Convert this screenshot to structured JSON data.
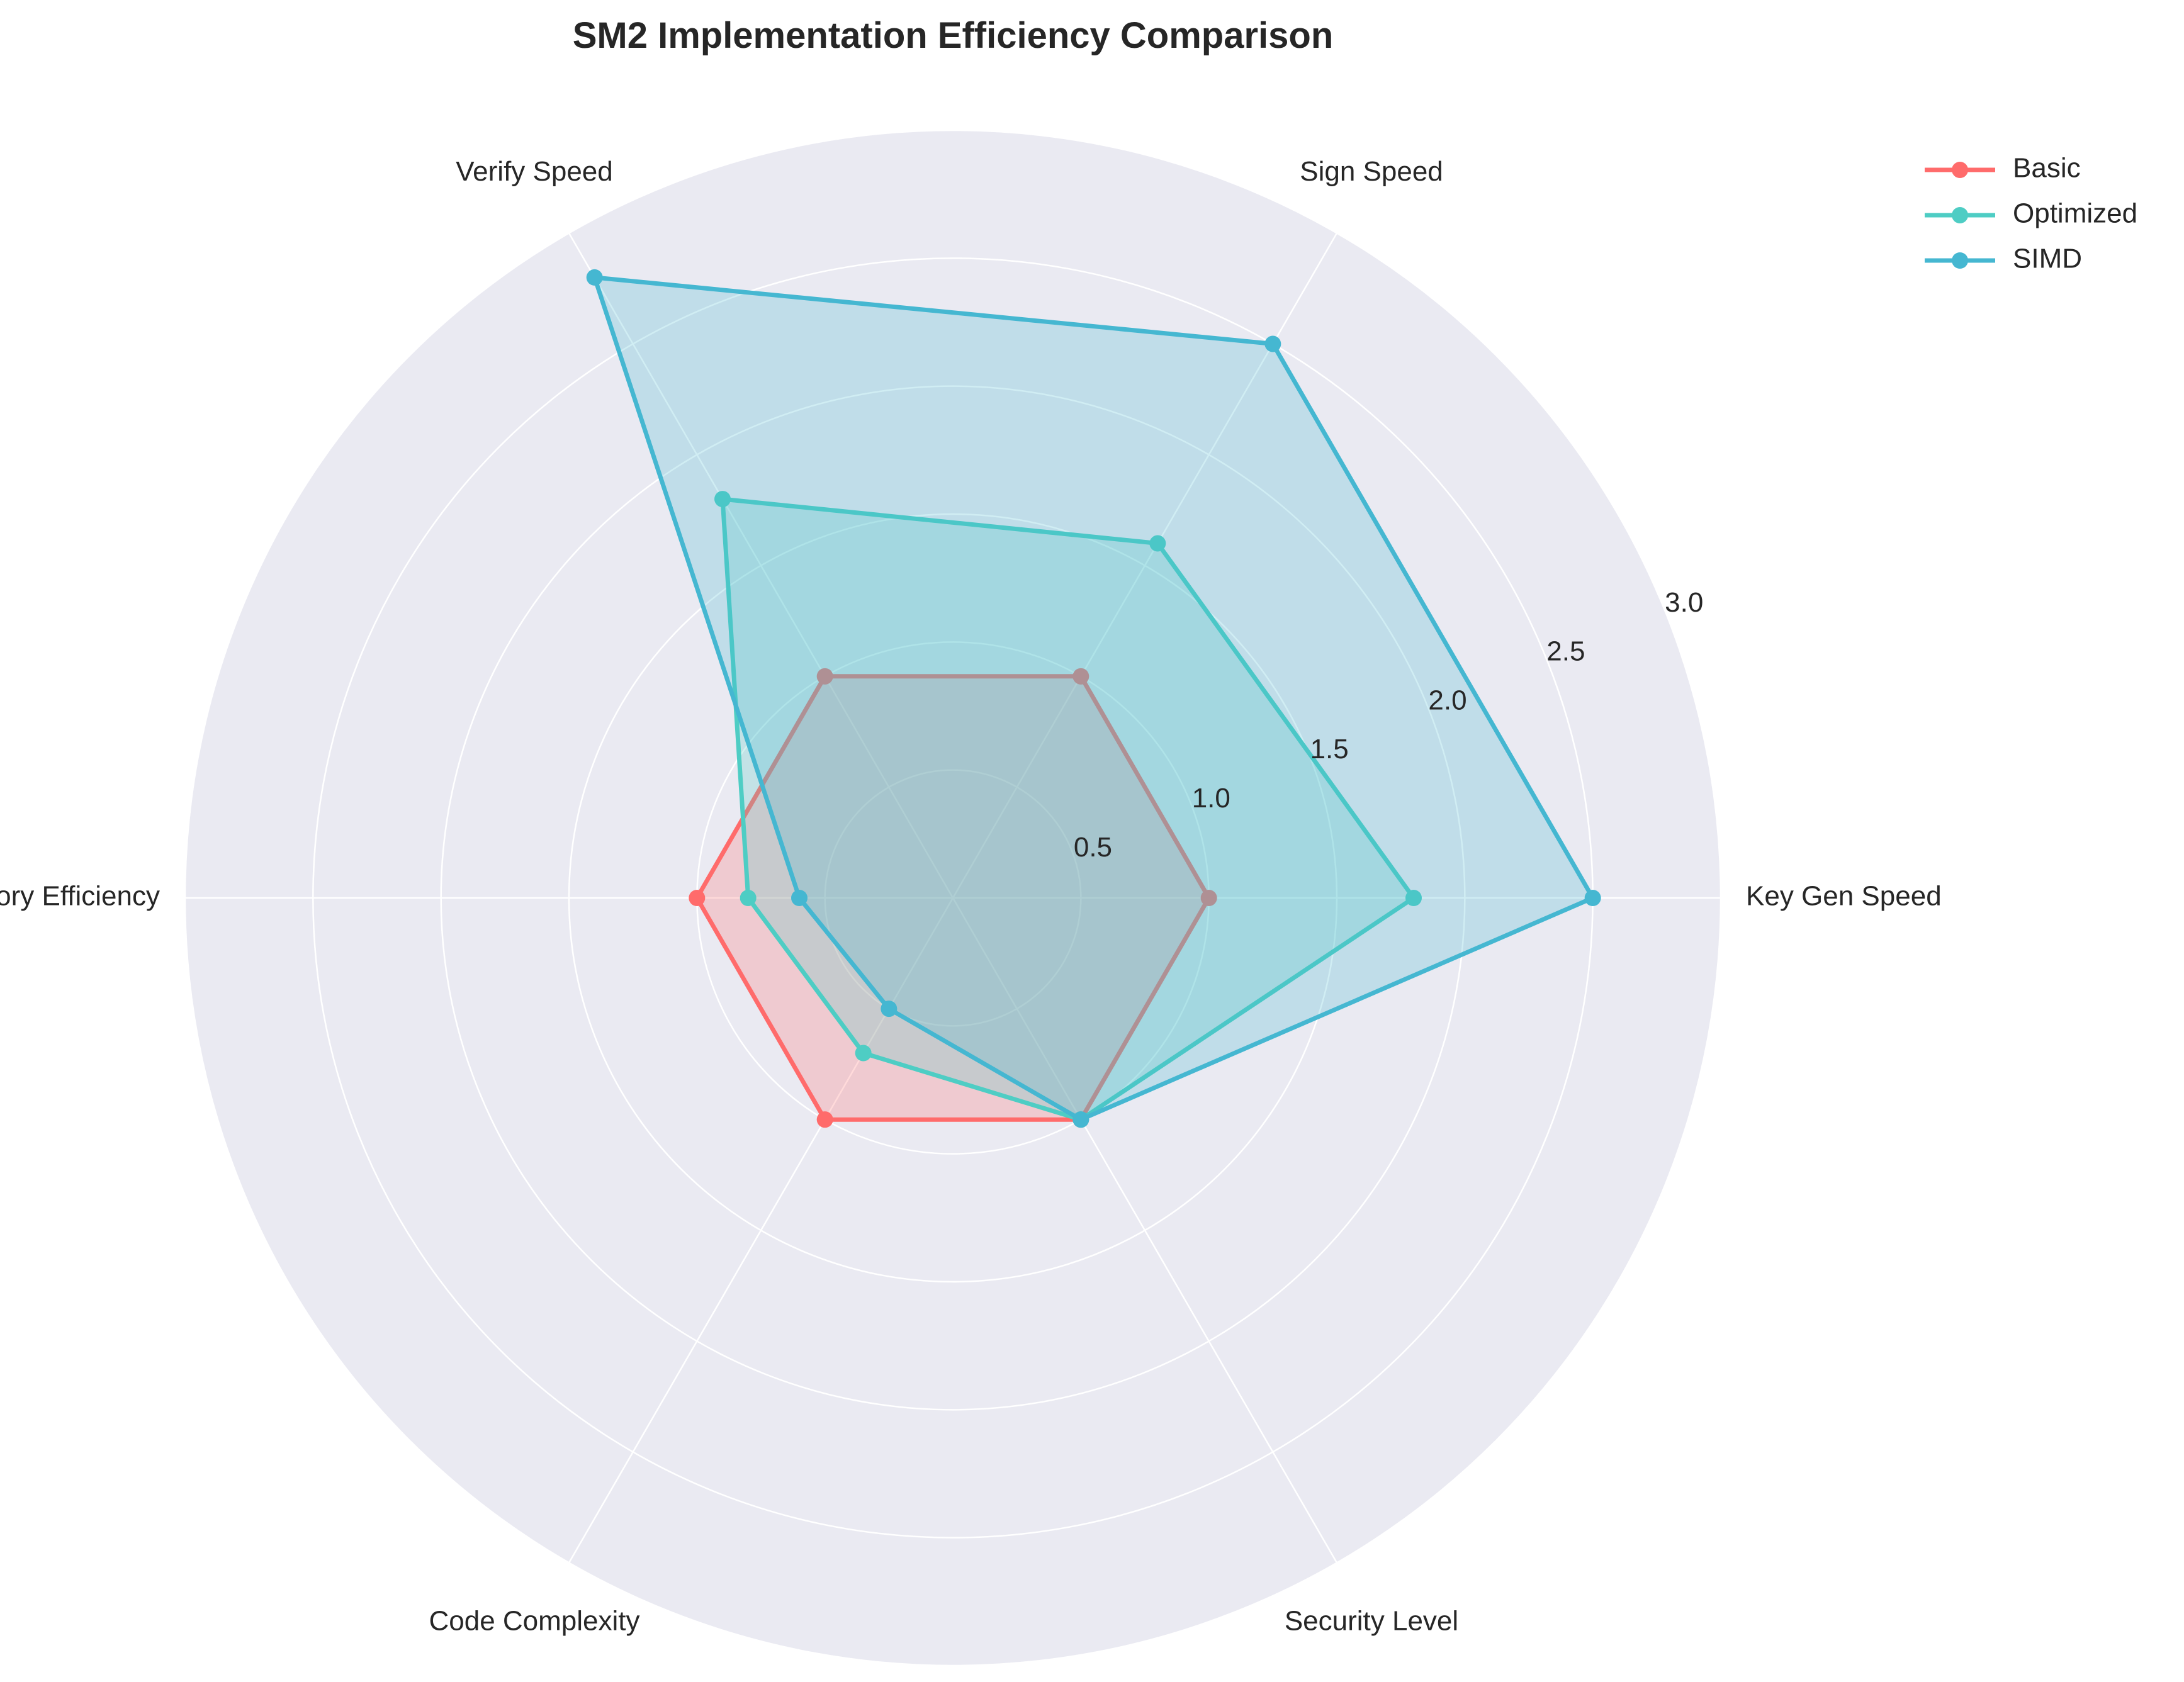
{
  "chart_data": {
    "type": "radar",
    "title": "SM2 Implementation Efficiency Comparison",
    "categories": [
      "Key Gen Speed",
      "Sign Speed",
      "Verify Speed",
      "Memory Efficiency",
      "Code Complexity",
      "Security Level"
    ],
    "series": [
      {
        "name": "Basic",
        "values": [
          1.0,
          1.0,
          1.0,
          1.0,
          1.0,
          1.0
        ],
        "color": "#FF6B6B"
      },
      {
        "name": "Optimized",
        "values": [
          1.8,
          1.6,
          1.8,
          0.8,
          0.7,
          1.0
        ],
        "color": "#4ECDC4"
      },
      {
        "name": "SIMD",
        "values": [
          2.5,
          2.5,
          2.8,
          0.6,
          0.5,
          1.0
        ],
        "color": "#45B7D1"
      }
    ],
    "rlim": [
      0,
      3.0
    ],
    "r_ticks": [
      "0.5",
      "1.0",
      "1.5",
      "2.0",
      "2.5",
      "3.0"
    ],
    "grid": true,
    "legend_position": "top-right",
    "background_color": "#EAEAF2"
  }
}
